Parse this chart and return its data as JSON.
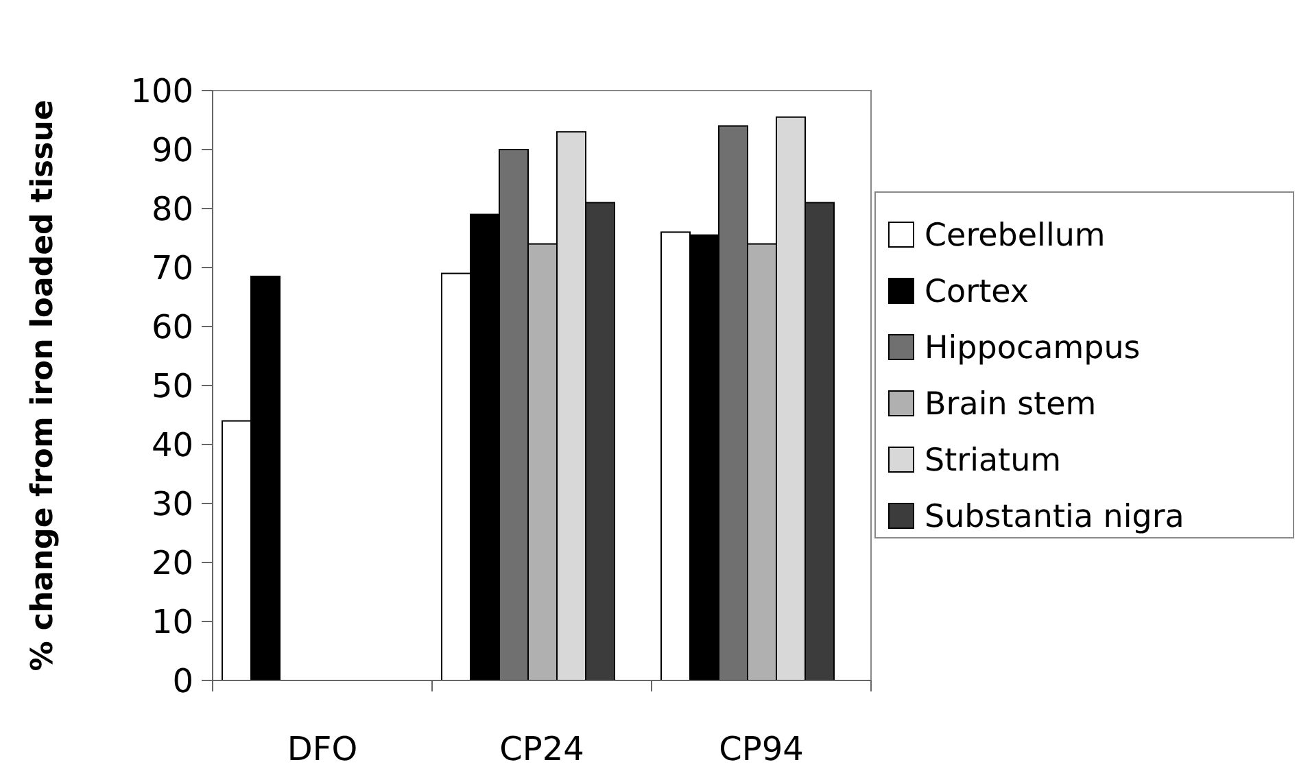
{
  "chart_data": {
    "type": "bar",
    "ylabel": "% change from iron loaded tissue",
    "categories": [
      "DFO",
      "CP24",
      "CP94"
    ],
    "series": [
      {
        "name": "Cerebellum",
        "color": "#ffffff",
        "values": [
          44,
          69,
          76
        ]
      },
      {
        "name": "Cortex",
        "color": "#000000",
        "values": [
          68.5,
          79,
          75.5
        ]
      },
      {
        "name": "Hippocampus",
        "color": "#707070",
        "values": [
          null,
          90,
          94
        ]
      },
      {
        "name": "Brain stem",
        "color": "#b0b0b0",
        "values": [
          null,
          74,
          74
        ]
      },
      {
        "name": "Striatum",
        "color": "#d8d8d8",
        "values": [
          null,
          93,
          95.5
        ]
      },
      {
        "name": "Substantia nigra",
        "color": "#3c3c3c",
        "values": [
          null,
          81,
          81
        ]
      }
    ],
    "ylim": [
      0,
      100
    ],
    "yticks": [
      0,
      10,
      20,
      30,
      40,
      50,
      60,
      70,
      80,
      90,
      100
    ],
    "grid": false,
    "legend": "right"
  }
}
